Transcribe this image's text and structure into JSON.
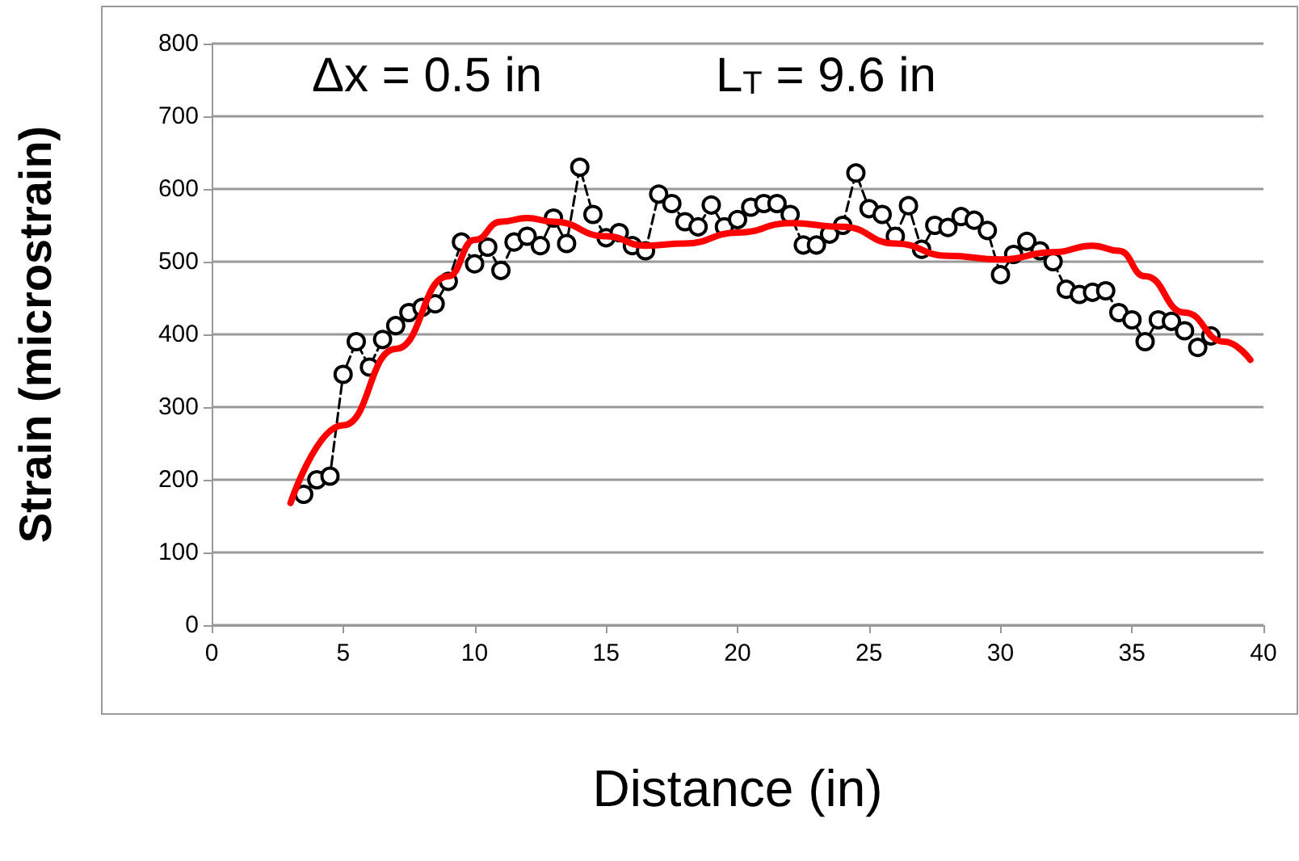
{
  "chart_data": {
    "type": "line",
    "xlabel": "Distance (in)",
    "ylabel": "Strain (microstrain)",
    "annotations": [
      "Δx = 0.5 in",
      "L$_{T}$ = 9.6 in"
    ],
    "xlim": [
      0,
      40
    ],
    "xticks": [
      0,
      5,
      10,
      15,
      20,
      25,
      30,
      35,
      40
    ],
    "ylim": [
      0,
      800
    ],
    "yticks": [
      0,
      100,
      200,
      300,
      400,
      500,
      600,
      700,
      800
    ],
    "grid": "y",
    "series": [
      {
        "color": "#000000",
        "marker": "circle",
        "line_style": "dashed",
        "x": [
          3.5,
          4,
          4.5,
          5,
          5.5,
          6,
          6.5,
          7,
          7.5,
          8,
          8.5,
          9,
          9.5,
          10,
          10.5,
          11,
          11.5,
          12,
          12.5,
          13,
          13.5,
          14,
          14.5,
          15,
          15.5,
          16,
          16.5,
          17,
          17.5,
          18,
          18.5,
          19,
          19.5,
          20,
          20.5,
          21,
          21.5,
          22,
          22.5,
          23,
          23.5,
          24,
          24.5,
          25,
          25.5,
          26,
          26.5,
          27,
          27.5,
          28,
          28.5,
          29,
          29.5,
          30,
          30.5,
          31,
          31.5,
          32,
          32.5,
          33,
          33.5,
          34,
          34.5,
          35,
          35.5,
          36,
          36.5,
          37,
          37.5,
          38
        ],
        "values": [
          180,
          200,
          205,
          345,
          390,
          355,
          393,
          412,
          430,
          437,
          442,
          473,
          527,
          497,
          520,
          488,
          527,
          535,
          522,
          560,
          525,
          630,
          565,
          533,
          540,
          522,
          515,
          593,
          580,
          555,
          548,
          578,
          548,
          558,
          575,
          580,
          580,
          565,
          523,
          523,
          538,
          550,
          622,
          573,
          565,
          535,
          577,
          517,
          550,
          547,
          562,
          557,
          543,
          482,
          510,
          528,
          515,
          500,
          462,
          455,
          458,
          460,
          430,
          420,
          390,
          420,
          418,
          405,
          382,
          398
        ]
      },
      {
        "color": "#ff0000",
        "marker": "none",
        "line_style": "solid",
        "x": [
          3,
          5,
          7,
          9,
          10,
          11,
          12,
          13,
          15,
          16.5,
          18,
          20,
          22,
          24,
          26,
          28,
          30,
          32,
          33.5,
          34.5,
          35.5,
          37,
          38.5,
          39.5
        ],
        "values": [
          168,
          275,
          380,
          480,
          530,
          555,
          560,
          555,
          535,
          522,
          525,
          540,
          553,
          548,
          525,
          508,
          503,
          513,
          522,
          515,
          480,
          430,
          390,
          365
        ]
      }
    ]
  }
}
